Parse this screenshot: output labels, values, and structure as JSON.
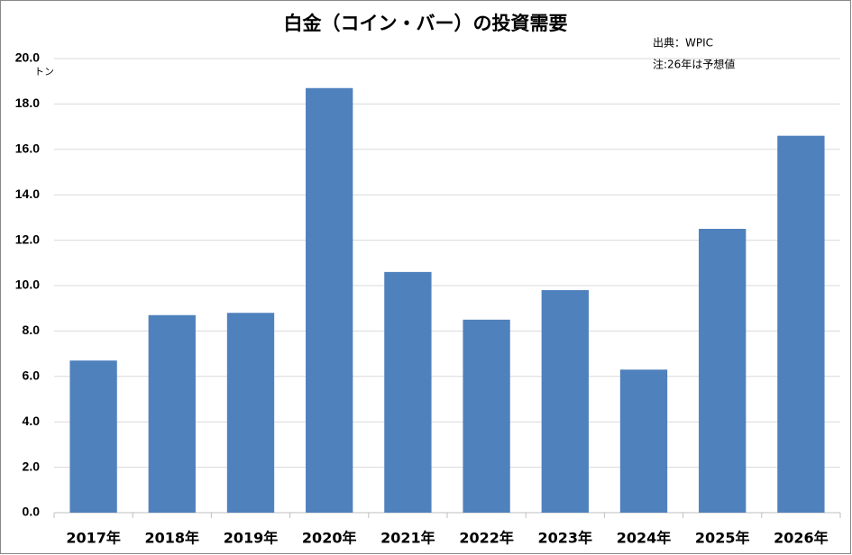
{
  "chart_data": {
    "type": "bar",
    "title": "白金（コイン・バー）の投資需要",
    "annotations": [
      "出典：WPIC",
      "注:26年は予想値"
    ],
    "y_label": "トン",
    "categories": [
      "2017年",
      "2018年",
      "2019年",
      "2020年",
      "2021年",
      "2022年",
      "2023年",
      "2024年",
      "2025年",
      "2026年"
    ],
    "values": [
      6.7,
      8.7,
      8.8,
      18.7,
      10.6,
      8.5,
      9.8,
      6.3,
      12.5,
      16.6
    ],
    "color": "#4f81bd",
    "ylim": [
      0,
      20
    ],
    "yticks": [
      {
        "value": 0,
        "label": "0.0"
      },
      {
        "value": 2,
        "label": "2.0"
      },
      {
        "value": 4,
        "label": "4.0"
      },
      {
        "value": 6,
        "label": "6.0"
      },
      {
        "value": 8,
        "label": "8.0"
      },
      {
        "value": 10,
        "label": "10.0"
      },
      {
        "value": 12,
        "label": "12.0"
      },
      {
        "value": 14,
        "label": "14.0"
      },
      {
        "value": 16,
        "label": "16.0"
      },
      {
        "value": 18,
        "label": "18.0"
      },
      {
        "value": 20,
        "label": "20.0"
      }
    ],
    "grid": true
  }
}
